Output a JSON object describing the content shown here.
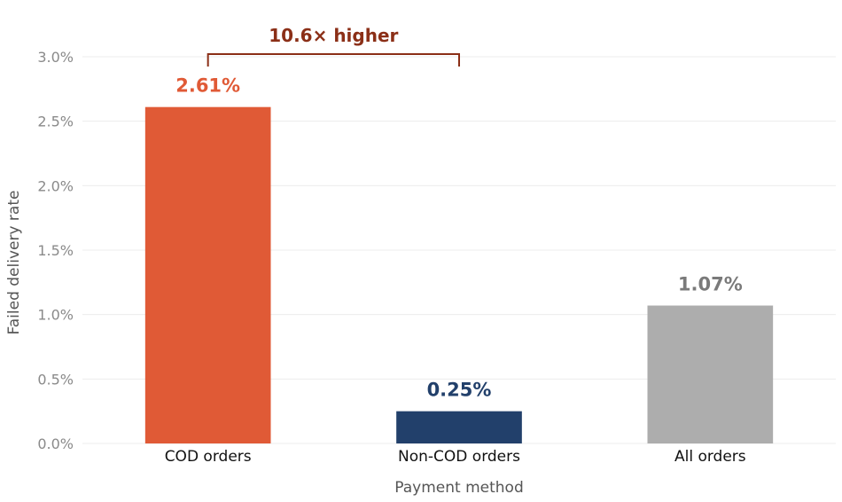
{
  "chart_data": {
    "type": "bar",
    "title": "",
    "xlabel": "Payment method",
    "ylabel": "Failed delivery rate",
    "categories": [
      "COD orders",
      "Non-COD orders",
      "All orders"
    ],
    "values": [
      2.61,
      0.25,
      1.07
    ],
    "value_labels": [
      "2.61%",
      "0.25%",
      "1.07%"
    ],
    "bar_colors": [
      "#e05a36",
      "#22406b",
      "#adadad"
    ],
    "label_colors": [
      "#e05a36",
      "#22406b",
      "#7a7a7a"
    ],
    "ylim": [
      0,
      3.0
    ],
    "yticks": [
      0,
      0.5,
      1.0,
      1.5,
      2.0,
      2.5,
      3.0
    ],
    "ytick_labels": [
      "0.0%",
      "0.5%",
      "1.0%",
      "1.5%",
      "2.0%",
      "2.5%",
      "3.0%"
    ],
    "grid": true,
    "annotation": {
      "text": "10.6× higher",
      "from_category": "COD orders",
      "to_category": "Non-COD orders",
      "color": "#8b2f17"
    }
  }
}
